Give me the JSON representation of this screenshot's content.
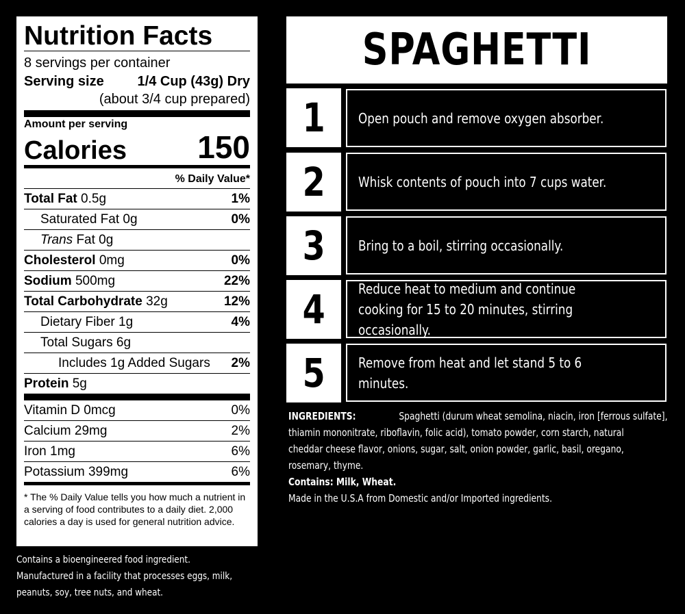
{
  "nutrition": {
    "title": "Nutrition Facts",
    "servings": "8 servings per container",
    "serving_size_label": "Serving size",
    "serving_size_value": "1/4 Cup (43g) Dry",
    "serving_size_sub": "(about 3/4 cup prepared)",
    "amount_per_serving": "Amount per serving",
    "calories_label": "Calories",
    "calories_value": "150",
    "dv_header": "% Daily Value*",
    "nutrients": [
      {
        "label": "Total Fat",
        "amount": "0.5g",
        "pct": "1%"
      },
      {
        "label": "Saturated Fat",
        "amount": "0g",
        "pct": "0%"
      },
      {
        "label": "Trans",
        "amount": "Fat 0g",
        "pct": ""
      },
      {
        "label": "Cholesterol",
        "amount": "0mg",
        "pct": "0%"
      },
      {
        "label": "Sodium",
        "amount": "500mg",
        "pct": "22%"
      },
      {
        "label": "Total Carbohydrate",
        "amount": "32g",
        "pct": "12%"
      },
      {
        "label": "Dietary Fiber",
        "amount": "1g",
        "pct": "4%"
      },
      {
        "label": "Total Sugars",
        "amount": "6g",
        "pct": ""
      },
      {
        "label": "Includes 1g Added Sugars",
        "amount": "",
        "pct": "2%"
      },
      {
        "label": "Protein",
        "amount": "5g",
        "pct": ""
      }
    ],
    "vitamins": [
      {
        "label": "Vitamin D 0mcg",
        "pct": "0%"
      },
      {
        "label": "Calcium 29mg",
        "pct": "2%"
      },
      {
        "label": "Iron 1mg",
        "pct": "6%"
      },
      {
        "label": "Potassium 399mg",
        "pct": "6%"
      }
    ],
    "footnote": "* The % Daily Value tells you how much a nutrient in a serving of food contributes to a daily diet. 2,000 calories a day is used for general nutrition advice."
  },
  "notes": [
    "Contains a bioengineered food ingredient.",
    "Manufactured in a facility that processes eggs, milk,",
    "peanuts, soy, tree nuts, and wheat."
  ],
  "instructions": {
    "title": "SPAGHETTI",
    "steps": [
      {
        "number": "1",
        "text": "Open pouch and remove oxygen absorber."
      },
      {
        "number": "2",
        "text": "Whisk contents of pouch into 7 cups water."
      },
      {
        "number": "3",
        "text": "Bring to a boil, stirring occasionally."
      },
      {
        "number": "4",
        "text": "Reduce heat to medium and continue cooking for 15 to 20 minutes, stirring occasionally."
      },
      {
        "number": "5",
        "text": "Remove from heat and let stand 5 to 6 minutes."
      }
    ]
  },
  "ingredients": {
    "label": "INGREDIENTS:",
    "lines": [
      "Spaghetti (durum wheat semolina, niacin, iron [ferrous sulfate],",
      "thiamin mononitrate, riboflavin, folic acid), tomato powder, corn starch, natural",
      "cheddar cheese flavor, onions, sugar, salt, onion powder, garlic, basil, oregano,",
      "rosemary, thyme."
    ],
    "contains_label": "Contains:",
    "contains_value": "Milk, Wheat.",
    "origin": "Made in the U.S.A from Domestic and/or Imported ingredients."
  },
  "colors": {
    "background": "#000000",
    "panel": "#ffffff"
  }
}
